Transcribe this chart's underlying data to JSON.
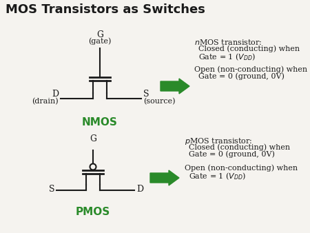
{
  "title": "MOS Transistors as Switches",
  "title_fontsize": 13,
  "title_fontweight": "bold",
  "bg_color": "#f5f3ef",
  "green_color": "#2a8a2a",
  "black_color": "#1a1a1a",
  "nmos_label": "NMOS",
  "pmos_label": "PMOS",
  "fig_w": 4.5,
  "fig_h": 3.38,
  "dpi": 100,
  "nmos_G_label": "G",
  "nmos_gate_label": "(gate)",
  "nmos_D_label": "D",
  "nmos_drain_label": "(drain)",
  "nmos_S_label": "S",
  "nmos_source_label": "(source)",
  "pmos_G_label": "G",
  "pmos_S_label": "S",
  "pmos_D_label": "D",
  "nmos_t1": "nMOS transistor:",
  "nmos_t2": "   Closed (conducting) when",
  "nmos_t3": "   Gate = 1 (V$_{DD}$)",
  "nmos_t4": "Open (non-conducting) when",
  "nmos_t5": "   Gate = 0 (ground, 0V)",
  "pmos_t1": "pMOS transistor:",
  "pmos_t2": "   Closed (conducting) when",
  "pmos_t3": "   Gate = 0 (ground, 0V)",
  "pmos_t4": "Open (non-conducting) when",
  "pmos_t5": "   Gate = 1 (V$_{DD}$)"
}
